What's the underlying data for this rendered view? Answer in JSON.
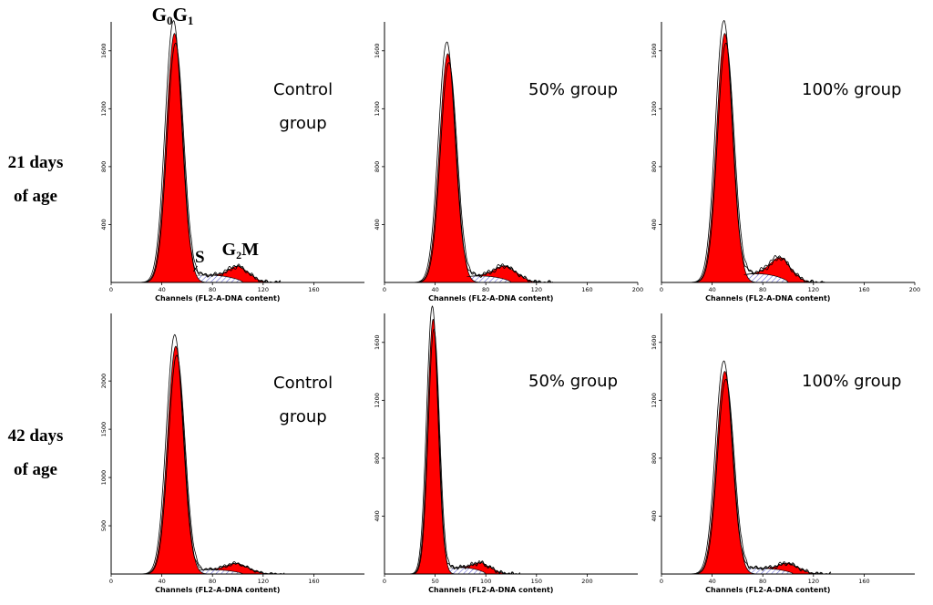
{
  "row_labels": [
    {
      "line1": "21 days",
      "line2": "of age"
    },
    {
      "line1": "42 days",
      "line2": "of age"
    }
  ],
  "phase_labels": {
    "g0g1": "G0G1",
    "s": "S",
    "g2m": "G2M"
  },
  "colors": {
    "g0g1": "#ff0000",
    "g2m": "#ff0000",
    "s_hatch": "#5b5bd6",
    "outline": "#000000"
  },
  "chart_data": [
    {
      "type": "area",
      "row": "21 days of age",
      "title_line1": "Control",
      "title_line2": "group",
      "xlabel": "Channels (FL2-A-DNA content)",
      "xlim": [
        0,
        200
      ],
      "xticks": [
        "0",
        "40",
        "80",
        "120",
        "160"
      ],
      "xtick_values": [
        0,
        40,
        80,
        120,
        160
      ],
      "ylim": [
        0,
        1800
      ],
      "yticks": [
        "400",
        "800",
        "1200",
        "1600"
      ],
      "ytick_values": [
        400,
        800,
        1200,
        1600
      ],
      "series": [
        {
          "name": "G0G1",
          "mean": 50,
          "sd": 6.5,
          "height": 1720
        },
        {
          "name": "S",
          "start": 50,
          "end": 104,
          "height": 50
        },
        {
          "name": "G2M",
          "mean": 102,
          "sd": 8,
          "height": 95
        }
      ],
      "show_phase_labels": true
    },
    {
      "type": "area",
      "row": "21 days of age",
      "title_line1": "50% group",
      "title_line2": "",
      "xlabel": "Channels (FL2-A-DNA content)",
      "xlim": [
        0,
        200
      ],
      "xticks": [
        "0",
        "40",
        "80",
        "120",
        "160",
        "200"
      ],
      "xtick_values": [
        0,
        40,
        80,
        120,
        160,
        200
      ],
      "ylim": [
        0,
        1800
      ],
      "yticks": [
        "400",
        "800",
        "1200",
        "1600"
      ],
      "ytick_values": [
        400,
        800,
        1200,
        1600
      ],
      "series": [
        {
          "name": "G0G1",
          "mean": 50,
          "sd": 6.5,
          "height": 1580
        },
        {
          "name": "S",
          "start": 50,
          "end": 100,
          "height": 45
        },
        {
          "name": "G2M",
          "mean": 97,
          "sd": 9,
          "height": 95
        }
      ],
      "show_phase_labels": false
    },
    {
      "type": "area",
      "row": "21 days of age",
      "title_line1": "100% group",
      "title_line2": "",
      "xlabel": "Channels (FL2-A-DNA content)",
      "xlim": [
        0,
        200
      ],
      "xticks": [
        "0",
        "40",
        "80",
        "120",
        "160",
        "200"
      ],
      "xtick_values": [
        0,
        40,
        80,
        120,
        160,
        200
      ],
      "ylim": [
        0,
        1800
      ],
      "yticks": [
        "400",
        "800",
        "1200",
        "1600"
      ],
      "ytick_values": [
        400,
        800,
        1200,
        1600
      ],
      "series": [
        {
          "name": "G0G1",
          "mean": 50,
          "sd": 6.5,
          "height": 1720
        },
        {
          "name": "S",
          "start": 50,
          "end": 100,
          "height": 60
        },
        {
          "name": "G2M",
          "mean": 95,
          "sd": 8.5,
          "height": 140
        }
      ],
      "show_phase_labels": false
    },
    {
      "type": "area",
      "row": "42 days of age",
      "title_line1": "Control",
      "title_line2": "group",
      "xlabel": "Channels (FL2-A-DNA content)",
      "xlim": [
        0,
        200
      ],
      "xticks": [
        "0",
        "40",
        "80",
        "120",
        "160"
      ],
      "xtick_values": [
        0,
        40,
        80,
        120,
        160
      ],
      "ylim": [
        0,
        2700
      ],
      "yticks": [
        "500",
        "1000",
        "1500",
        "2000"
      ],
      "ytick_values": [
        500,
        1000,
        1500,
        2000
      ],
      "series": [
        {
          "name": "G0G1",
          "mean": 51,
          "sd": 6.5,
          "height": 2360
        },
        {
          "name": "S",
          "start": 51,
          "end": 104,
          "height": 45
        },
        {
          "name": "G2M",
          "mean": 101,
          "sd": 9,
          "height": 90
        }
      ],
      "show_phase_labels": false
    },
    {
      "type": "area",
      "row": "42 days of age",
      "title_line1": "50% group",
      "title_line2": "",
      "xlabel": "Channels (FL2-A-DNA content)",
      "xlim": [
        0,
        250
      ],
      "xticks": [
        "0",
        "50",
        "100",
        "150",
        "200"
      ],
      "xtick_values": [
        0,
        50,
        100,
        150,
        200
      ],
      "ylim": [
        0,
        1800
      ],
      "yticks": [
        "400",
        "800",
        "1200",
        "1600"
      ],
      "ytick_values": [
        400,
        800,
        1200,
        1600
      ],
      "series": [
        {
          "name": "G0G1",
          "mean": 48,
          "sd": 5.5,
          "height": 1760
        },
        {
          "name": "S",
          "start": 48,
          "end": 100,
          "height": 45
        },
        {
          "name": "G2M",
          "mean": 98,
          "sd": 9,
          "height": 60
        }
      ],
      "show_phase_labels": false
    },
    {
      "type": "area",
      "row": "42 days of age",
      "title_line1": "100% group",
      "title_line2": "",
      "xlabel": "Channels (FL2-A-DNA content)",
      "xlim": [
        0,
        200
      ],
      "xticks": [
        "0",
        "40",
        "80",
        "120",
        "160"
      ],
      "xtick_values": [
        0,
        40,
        80,
        120,
        160
      ],
      "ylim": [
        0,
        1800
      ],
      "yticks": [
        "400",
        "800",
        "1200",
        "1600"
      ],
      "ytick_values": [
        400,
        800,
        1200,
        1600
      ],
      "series": [
        {
          "name": "G0G1",
          "mean": 50,
          "sd": 6.5,
          "height": 1400
        },
        {
          "name": "S",
          "start": 50,
          "end": 104,
          "height": 40
        },
        {
          "name": "G2M",
          "mean": 102,
          "sd": 8,
          "height": 60
        }
      ],
      "show_phase_labels": false
    }
  ]
}
